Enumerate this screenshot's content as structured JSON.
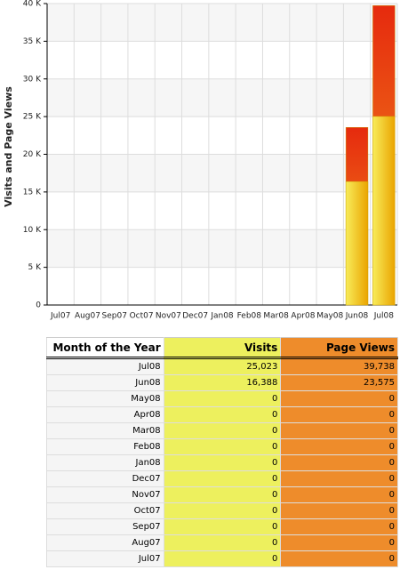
{
  "chart_data": {
    "type": "bar",
    "y_label": "Visits and Page Views",
    "categories": [
      "Jul07",
      "Aug07",
      "Sep07",
      "Oct07",
      "Nov07",
      "Dec07",
      "Jan08",
      "Feb08",
      "Mar08",
      "Apr08",
      "May08",
      "Jun08",
      "Jul08"
    ],
    "series": [
      {
        "name": "Page Views",
        "color": "#e8340f",
        "values": [
          0,
          0,
          0,
          0,
          0,
          0,
          0,
          0,
          0,
          0,
          0,
          23575,
          39738
        ]
      },
      {
        "name": "Visits",
        "color": "#f3c10c",
        "values": [
          0,
          0,
          0,
          0,
          0,
          0,
          0,
          0,
          0,
          0,
          0,
          16388,
          25023
        ]
      }
    ],
    "ylim": [
      0,
      40000
    ],
    "yticks": [
      0,
      {
        "value": 5000,
        "label": "5 K"
      },
      {
        "value": 10000,
        "label": "10 K"
      },
      {
        "value": 15000,
        "label": "15 K"
      },
      {
        "value": 20000,
        "label": "20 K"
      },
      {
        "value": 25000,
        "label": "25 K"
      },
      {
        "value": 30000,
        "label": "30 K"
      },
      {
        "value": 35000,
        "label": "35 K"
      },
      {
        "value": 40000,
        "label": "40 K"
      }
    ],
    "grid": true
  },
  "table": {
    "columns": [
      "Month of the Year",
      "Visits",
      "Page Views"
    ],
    "rows": [
      [
        "Jul08",
        "25,023",
        "39,738"
      ],
      [
        "Jun08",
        "16,388",
        "23,575"
      ],
      [
        "May08",
        "0",
        "0"
      ],
      [
        "Apr08",
        "0",
        "0"
      ],
      [
        "Mar08",
        "0",
        "0"
      ],
      [
        "Feb08",
        "0",
        "0"
      ],
      [
        "Jan08",
        "0",
        "0"
      ],
      [
        "Dec07",
        "0",
        "0"
      ],
      [
        "Nov07",
        "0",
        "0"
      ],
      [
        "Oct07",
        "0",
        "0"
      ],
      [
        "Sep07",
        "0",
        "0"
      ],
      [
        "Aug07",
        "0",
        "0"
      ],
      [
        "Jul07",
        "0",
        "0"
      ]
    ]
  }
}
